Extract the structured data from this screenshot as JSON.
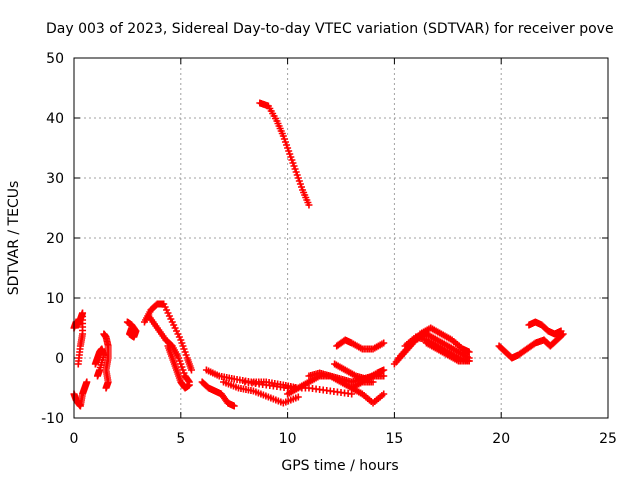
{
  "chart_data": {
    "type": "scatter",
    "title": "Day 003 of 2023, Sidereal Day-to-day VTEC variation (SDTVAR) for receiver pove",
    "xlabel": "GPS time / hours",
    "ylabel": "SDTVAR / TECUs",
    "xlim": [
      0,
      25
    ],
    "ylim": [
      -10,
      50
    ],
    "xticks": [
      0,
      5,
      10,
      15,
      20,
      25
    ],
    "yticks": [
      -10,
      0,
      10,
      20,
      30,
      40,
      50
    ],
    "grid": true,
    "marker": "+",
    "color": "#ff0000",
    "series": [
      {
        "name": "t0a",
        "x": [
          0.0,
          0.1,
          0.2,
          0.3,
          0.4,
          0.4,
          0.3,
          0.2
        ],
        "y": [
          5,
          6,
          5.5,
          6.5,
          7.5,
          4,
          2,
          -1
        ]
      },
      {
        "name": "t0b",
        "x": [
          0.0,
          0.1,
          0.2,
          0.3,
          0.4,
          0.5,
          0.6
        ],
        "y": [
          -6,
          -7,
          -7.5,
          -8,
          -6,
          -5,
          -4
        ]
      },
      {
        "name": "t1a",
        "x": [
          1.0,
          1.1,
          1.2,
          1.3,
          1.4,
          1.2,
          1.1
        ],
        "y": [
          -1,
          0,
          1,
          1.5,
          0.5,
          -2,
          -3
        ]
      },
      {
        "name": "t1b",
        "x": [
          1.4,
          1.5,
          1.6,
          1.6,
          1.5,
          1.6,
          1.5
        ],
        "y": [
          4,
          3.5,
          2,
          0,
          -2,
          -4,
          -5
        ]
      },
      {
        "name": "t2",
        "x": [
          2.5,
          2.7,
          2.9,
          2.8,
          2.6,
          2.7
        ],
        "y": [
          6,
          5.5,
          4.5,
          3.5,
          4,
          5
        ]
      },
      {
        "name": "t3a",
        "x": [
          3.3,
          3.6,
          3.9,
          4.2,
          4.6,
          5.0,
          5.3,
          5.5
        ],
        "y": [
          6,
          8,
          9,
          9,
          6,
          3,
          0,
          -2
        ]
      },
      {
        "name": "t3b",
        "x": [
          3.5,
          3.9,
          4.3,
          4.6,
          4.9,
          5.2,
          5.4
        ],
        "y": [
          7,
          5,
          3,
          2,
          0,
          -3,
          -4
        ]
      },
      {
        "name": "t4",
        "x": [
          4.4,
          4.6,
          4.8,
          5.0,
          5.2,
          5.4
        ],
        "y": [
          2,
          0,
          -2,
          -4,
          -5,
          -4.5
        ]
      },
      {
        "name": "t6a",
        "x": [
          6.0,
          6.3,
          6.6,
          6.9,
          7.2,
          7.5
        ],
        "y": [
          -4,
          -5,
          -5.5,
          -6,
          -7.5,
          -8
        ]
      },
      {
        "name": "t6b",
        "x": [
          6.2,
          6.8,
          7.5,
          8.3,
          9.0,
          9.8,
          10.5
        ],
        "y": [
          -2,
          -3,
          -3.5,
          -4,
          -4,
          -4.5,
          -5
        ]
      },
      {
        "name": "t7",
        "x": [
          7.0,
          7.7,
          8.4,
          9.1,
          9.8,
          10.5
        ],
        "y": [
          -4,
          -5,
          -5.5,
          -6.5,
          -7.5,
          -6.5
        ]
      },
      {
        "name": "t8",
        "x": [
          8.0,
          9.0,
          10.0,
          11.0,
          12.0,
          13.0
        ],
        "y": [
          -4,
          -4.5,
          -5,
          -5,
          -5.5,
          -6
        ]
      },
      {
        "name": "t8high",
        "x": [
          8.7,
          9.1,
          9.5,
          9.8,
          10.1,
          10.4,
          10.7,
          11.0
        ],
        "y": [
          42.5,
          42,
          39.5,
          37,
          34,
          31,
          28,
          25.5
        ]
      },
      {
        "name": "t10",
        "x": [
          10.0,
          10.5,
          11.0,
          11.5,
          12.0,
          12.5,
          13.0,
          13.5,
          14.0
        ],
        "y": [
          -6,
          -5,
          -4,
          -3,
          -3,
          -4,
          -5,
          -4,
          -4
        ]
      },
      {
        "name": "t11",
        "x": [
          11.0,
          11.5,
          12.0,
          12.5,
          13.0,
          13.5,
          14.0,
          14.5
        ],
        "y": [
          -3,
          -2.5,
          -3,
          -3.5,
          -4,
          -3.5,
          -3,
          -3
        ]
      },
      {
        "name": "t12",
        "x": [
          12.2,
          12.7,
          13.2,
          13.7,
          14.2,
          14.5
        ],
        "y": [
          -1,
          -2,
          -3,
          -3.5,
          -2.5,
          -2
        ]
      },
      {
        "name": "t13",
        "x": [
          13.0,
          13.5,
          14.0,
          14.5
        ],
        "y": [
          -5,
          -6,
          -7.5,
          -6
        ]
      },
      {
        "name": "t12b",
        "x": [
          12.3,
          12.7,
          13.0,
          13.5,
          14.0,
          14.5
        ],
        "y": [
          2,
          3,
          2.5,
          1.5,
          1.5,
          2.5
        ]
      },
      {
        "name": "t15a",
        "x": [
          15.0,
          15.5,
          16.0,
          16.5,
          17.0,
          17.5,
          18.0,
          18.5
        ],
        "y": [
          -1,
          1,
          3,
          4,
          3,
          2,
          1,
          0
        ]
      },
      {
        "name": "t15b",
        "x": [
          15.2,
          15.7,
          16.2,
          16.7,
          17.2,
          17.7,
          18.2,
          18.5
        ],
        "y": [
          0,
          2,
          4,
          5,
          4,
          3,
          1.5,
          1
        ]
      },
      {
        "name": "t16",
        "x": [
          15.5,
          16.0,
          16.5,
          17.0,
          17.5,
          18.0,
          18.5
        ],
        "y": [
          2,
          3.5,
          3,
          2,
          1,
          0,
          -0.5
        ]
      },
      {
        "name": "t17",
        "x": [
          16.5,
          17.0,
          17.5,
          18.0,
          18.5
        ],
        "y": [
          2.5,
          1.5,
          0.5,
          -0.5,
          -0.5
        ]
      },
      {
        "name": "t20",
        "x": [
          19.9,
          20.2,
          20.5,
          20.8,
          21.2,
          21.6,
          22.0
        ],
        "y": [
          2,
          1,
          0,
          0.5,
          1.5,
          2.5,
          3
        ]
      },
      {
        "name": "t21",
        "x": [
          21.3,
          21.6,
          21.9,
          22.2,
          22.5,
          22.8
        ],
        "y": [
          5.5,
          6,
          5.5,
          4.5,
          4,
          4.5
        ]
      },
      {
        "name": "t22",
        "x": [
          22.0,
          22.3,
          22.6,
          22.9
        ],
        "y": [
          3,
          2,
          3,
          4
        ]
      }
    ]
  }
}
